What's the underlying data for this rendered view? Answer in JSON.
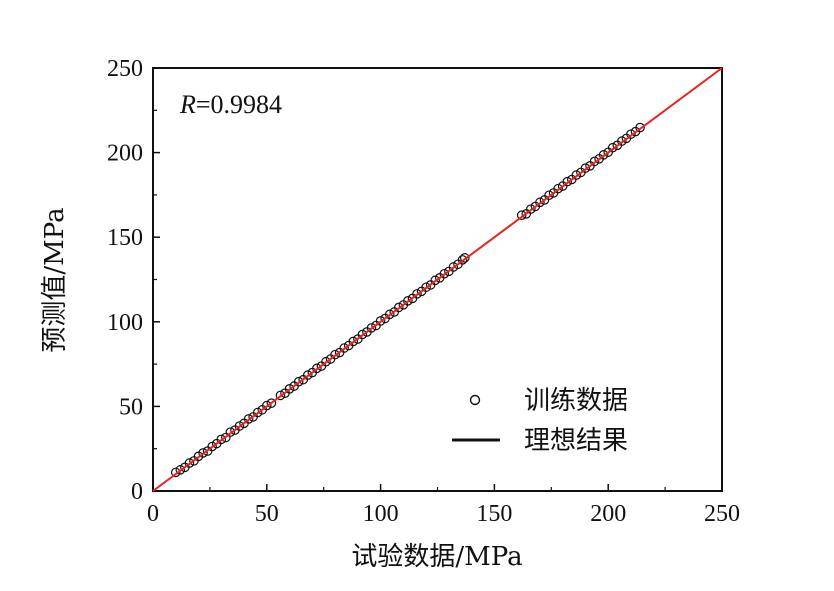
{
  "chart_data": {
    "type": "scatter",
    "xlabel": "试验数据/MPa",
    "ylabel": "预测值/MPa",
    "xlim": [
      0,
      250
    ],
    "ylim": [
      0,
      250
    ],
    "xticks": [
      "0",
      "50",
      "100",
      "150",
      "200",
      "250"
    ],
    "yticks": [
      "0",
      "50",
      "100",
      "150",
      "200",
      "250"
    ],
    "annotation": {
      "r_symbol": "R",
      "r_value": "=0.9984"
    },
    "legend": {
      "placement": "lower-right",
      "entries": [
        "训练数据",
        "理想结果"
      ]
    },
    "grid": false,
    "colors": {
      "ideal_line": "#e8231f",
      "points": "#111111"
    },
    "series": [
      {
        "name": "训练数据",
        "type": "scatter",
        "marker": "open-circle",
        "points": [
          [
            10,
            11
          ],
          [
            12,
            12.5
          ],
          [
            14,
            14
          ],
          [
            16,
            16.5
          ],
          [
            18,
            17.8
          ],
          [
            20,
            20.5
          ],
          [
            22,
            22.5
          ],
          [
            24,
            23.6
          ],
          [
            26,
            26.3
          ],
          [
            28,
            28
          ],
          [
            30,
            30.5
          ],
          [
            32,
            31.6
          ],
          [
            34,
            34.8
          ],
          [
            36,
            36
          ],
          [
            38,
            38.4
          ],
          [
            40,
            40
          ],
          [
            42,
            42.6
          ],
          [
            44,
            43.8
          ],
          [
            46,
            46.4
          ],
          [
            48,
            48
          ],
          [
            50,
            50.5
          ],
          [
            52,
            51.9
          ],
          [
            56,
            56.5
          ],
          [
            58,
            57.8
          ],
          [
            60,
            60.4
          ],
          [
            62,
            62
          ],
          [
            64,
            64.6
          ],
          [
            66,
            65.8
          ],
          [
            68,
            68.5
          ],
          [
            70,
            70
          ],
          [
            72,
            72.5
          ],
          [
            74,
            73.8
          ],
          [
            76,
            76.4
          ],
          [
            78,
            78
          ],
          [
            80,
            80.6
          ],
          [
            82,
            81.8
          ],
          [
            84,
            84.5
          ],
          [
            86,
            86
          ],
          [
            88,
            88.4
          ],
          [
            90,
            89.8
          ],
          [
            92,
            92.5
          ],
          [
            94,
            94
          ],
          [
            96,
            96.4
          ],
          [
            98,
            97.8
          ],
          [
            100,
            100.5
          ],
          [
            102,
            102
          ],
          [
            104,
            104.4
          ],
          [
            106,
            105.8
          ],
          [
            108,
            108.5
          ],
          [
            110,
            110
          ],
          [
            112,
            112.4
          ],
          [
            114,
            113.8
          ],
          [
            116,
            116.5
          ],
          [
            118,
            118
          ],
          [
            120,
            120.4
          ],
          [
            122,
            121.8
          ],
          [
            124,
            124.5
          ],
          [
            126,
            126
          ],
          [
            128,
            128.4
          ],
          [
            130,
            129.8
          ],
          [
            132,
            132.4
          ],
          [
            134,
            134
          ],
          [
            136,
            136.6
          ],
          [
            137,
            137.8
          ],
          [
            162,
            163
          ],
          [
            164,
            163.8
          ],
          [
            166,
            166.6
          ],
          [
            168,
            168.2
          ],
          [
            170,
            170.6
          ],
          [
            172,
            172
          ],
          [
            174,
            174.8
          ],
          [
            176,
            176.2
          ],
          [
            178,
            178.7
          ],
          [
            180,
            180.2
          ],
          [
            182,
            182.8
          ],
          [
            184,
            184.1
          ],
          [
            186,
            186.7
          ],
          [
            188,
            188.3
          ],
          [
            190,
            190.8
          ],
          [
            192,
            192.2
          ],
          [
            194,
            194.8
          ],
          [
            196,
            196.3
          ],
          [
            198,
            198.7
          ],
          [
            200,
            200.2
          ],
          [
            202,
            202.9
          ],
          [
            204,
            204.3
          ],
          [
            206,
            206.8
          ],
          [
            208,
            208.4
          ],
          [
            210,
            210.9
          ],
          [
            212,
            212.4
          ],
          [
            214,
            214.8
          ]
        ]
      },
      {
        "name": "理想结果",
        "type": "line",
        "points": [
          [
            0,
            0
          ],
          [
            250,
            250
          ]
        ]
      }
    ]
  }
}
